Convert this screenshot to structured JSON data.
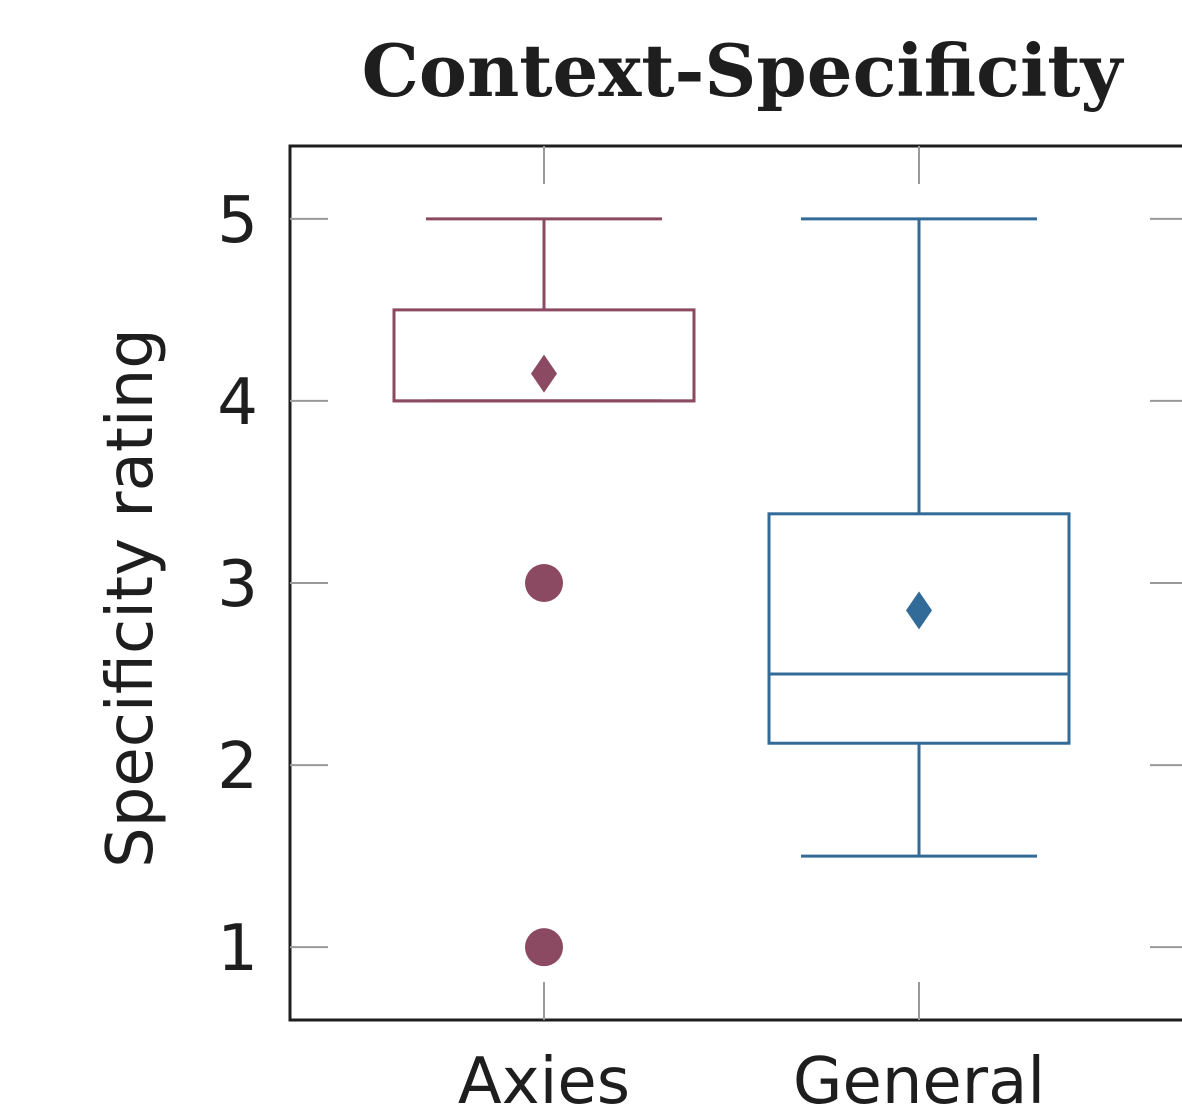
{
  "chart_data": {
    "type": "box",
    "title": "Context-Specificity",
    "xlabel": "",
    "ylabel": "Specificity rating",
    "ylim": [
      0.6,
      5.4
    ],
    "yticks": [
      1,
      2,
      3,
      4,
      5
    ],
    "grid": false,
    "categories": [
      "Axies",
      "General"
    ],
    "series": [
      {
        "category": "Axies",
        "color": "#8b4a62",
        "whisker_low": 4.0,
        "q1": 4.0,
        "median": 4.0,
        "q3": 4.5,
        "whisker_high": 5.0,
        "mean": 4.15,
        "outliers": [
          3,
          1
        ]
      },
      {
        "category": "General",
        "color": "#336b98",
        "whisker_low": 1.5,
        "q1": 2.12,
        "median": 2.5,
        "q3": 3.38,
        "whisker_high": 5.0,
        "mean": 2.85,
        "outliers": []
      }
    ]
  }
}
